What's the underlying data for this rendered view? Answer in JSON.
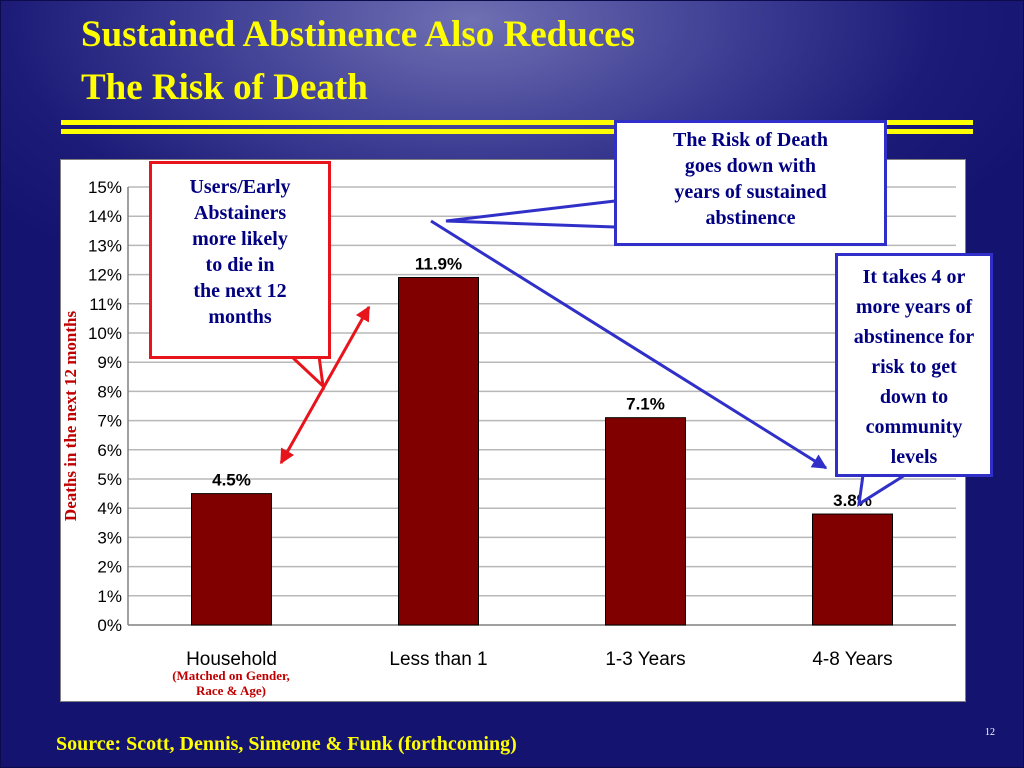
{
  "slide": {
    "title_line1": "Sustained Abstinence Also Reduces",
    "title_line2": "The Risk of Death",
    "source": "Source: Scott, Dennis, Simeone & Funk (forthcoming)",
    "page_number": "12",
    "household_note_line1": "(Matched on Gender,",
    "household_note_line2": "Race & Age)",
    "callouts": {
      "users": [
        "Users/Early",
        "Abstainers",
        "more likely",
        "to die in",
        "the next 12",
        "months"
      ],
      "risk": [
        "The Risk of Death",
        "goes down with",
        "years of sustained",
        "abstinence"
      ],
      "years": [
        "It takes 4 or",
        "more years of",
        "abstinence for",
        "risk to get",
        "down to",
        "community",
        "levels"
      ]
    },
    "colors": {
      "background": "#1c1c78",
      "title": "#ffff00",
      "bar": "#800000",
      "red_callout": "#e8141c",
      "blue_callout": "#3030c8",
      "ylabel": "#c00000"
    }
  },
  "chart_data": {
    "type": "bar",
    "categories": [
      "Household",
      "Less than 1",
      "1-3 Years",
      "4-8 Years"
    ],
    "values": [
      4.5,
      11.9,
      7.1,
      3.8
    ],
    "data_labels": [
      "4.5%",
      "11.9%",
      "7.1%",
      "3.8%"
    ],
    "ylabel": "Deaths in the next 12 months",
    "ylim": [
      0,
      15
    ],
    "yticks": [
      0,
      1,
      2,
      3,
      4,
      5,
      6,
      7,
      8,
      9,
      10,
      11,
      12,
      13,
      14,
      15
    ],
    "ytick_labels": [
      "0%",
      "1%",
      "2%",
      "3%",
      "4%",
      "5%",
      "6%",
      "7%",
      "8%",
      "9%",
      "10%",
      "11%",
      "12%",
      "13%",
      "14%",
      "15%"
    ],
    "grid": true,
    "legend": "none"
  }
}
